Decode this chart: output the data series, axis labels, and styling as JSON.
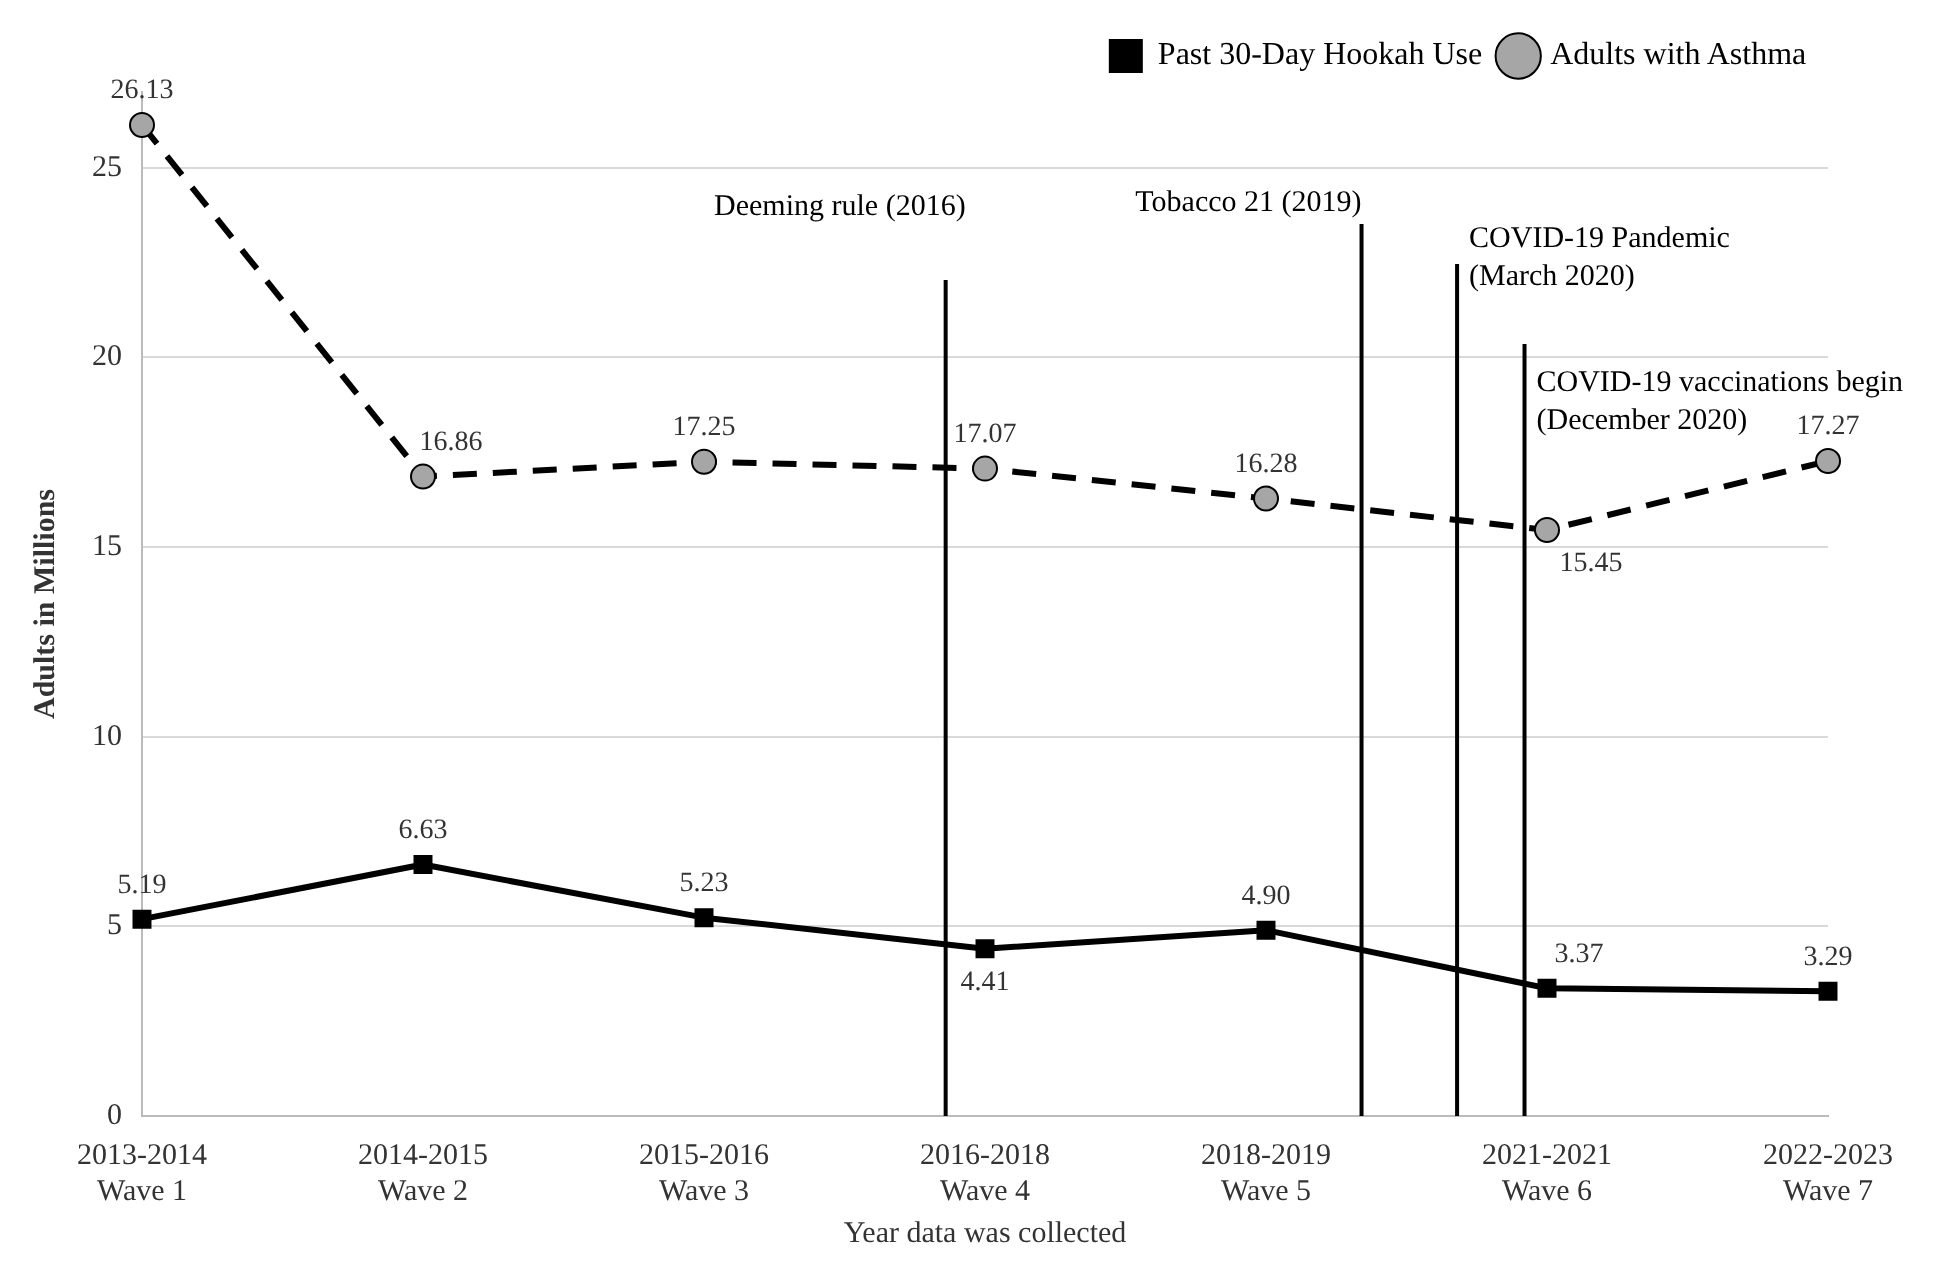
{
  "chart_data": {
    "type": "line",
    "xlabel": "Year data was collected",
    "ylabel": "Adults in Millions",
    "categories": [
      "2013-2014\nWave 1",
      "2014-2015\nWave 2",
      "2015-2016\nWave 3",
      "2016-2018\nWave 4",
      "2018-2019\nWave 5",
      "2021-2021\nWave 6",
      "2022-2023\nWave 7"
    ],
    "series": [
      {
        "name": "Past 30-Day Hookah Use",
        "color": "#000000",
        "marker": "square",
        "line_style": "solid",
        "values": [
          5.19,
          6.63,
          5.23,
          4.41,
          4.9,
          3.37,
          3.29
        ],
        "value_labels": [
          "5.19",
          "6.63",
          "5.23",
          "4.41",
          "4.90",
          "3.37",
          "3.29"
        ]
      },
      {
        "name": "Adults with Asthma",
        "color": "#000000",
        "marker": "circle",
        "line_style": "dashed",
        "values": [
          26.13,
          16.86,
          17.25,
          17.07,
          16.28,
          15.45,
          17.27
        ],
        "value_labels": [
          "26.13",
          "16.86",
          "17.25",
          "17.07",
          "16.28",
          "15.45",
          "17.27"
        ]
      }
    ],
    "ylim": [
      0,
      27
    ],
    "yticks": [
      0,
      5,
      10,
      15,
      20,
      25
    ],
    "grid": "y",
    "legend": "top right",
    "annotations": [
      "Deeming rule (2016)",
      "Tobacco 21 (2019)",
      "COVID-19 Pandemic\n(March 2020)",
      "COVID-19 vaccinations begin\n(December 2020)"
    ]
  }
}
